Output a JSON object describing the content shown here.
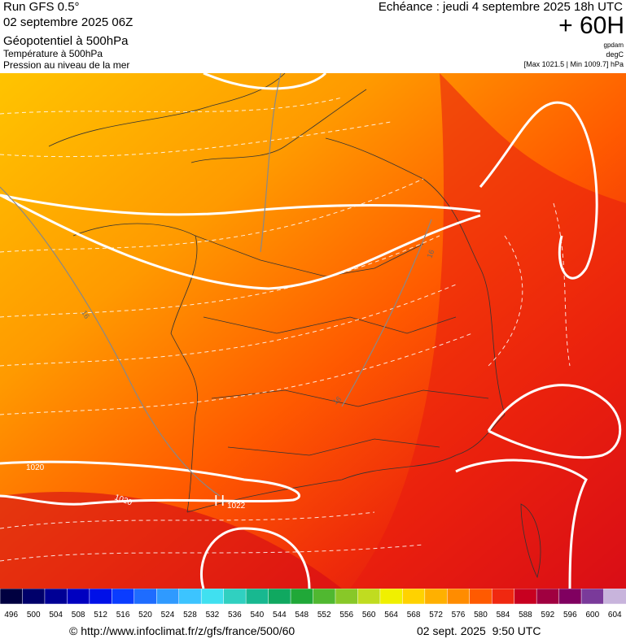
{
  "header": {
    "left": [
      "Run GFS 0.5°",
      "02 septembre 2025 06Z",
      "Géopotentiel à 500hPa",
      "Température à 500hPa",
      "Pression au niveau de la mer"
    ],
    "right": {
      "forecast": "Echéance : jeudi 4 septembre 2025 18h UTC",
      "lead": "+ 60H",
      "units": [
        "gpdam",
        "degC"
      ],
      "range": "[Max 1021.5 | Min 1009.7] hPa"
    }
  },
  "map_labels": {
    "isobar_1": "1020",
    "isobar_2": "1020",
    "high": "H",
    "high_value": "1022",
    "isotherm_1": "16",
    "isotherm_2": "16",
    "isotherm_3": "16"
  },
  "colorbar": {
    "ticks": [
      496,
      500,
      504,
      508,
      512,
      516,
      520,
      524,
      528,
      532,
      536,
      540,
      544,
      548,
      552,
      556,
      560,
      564,
      568,
      572,
      576,
      580,
      584,
      588,
      592,
      596,
      600,
      604
    ],
    "colors": [
      "#000040",
      "#00006a",
      "#000095",
      "#0000c0",
      "#0010e8",
      "#0a3cff",
      "#1e6cff",
      "#2f9aff",
      "#3cc4ff",
      "#40e0f0",
      "#30d0c0",
      "#18b890",
      "#10a860",
      "#20a838",
      "#50b830",
      "#88c828",
      "#c0dc20",
      "#f0f000",
      "#ffd200",
      "#ffb000",
      "#ff8c00",
      "#ff5a00",
      "#f02810",
      "#c80020",
      "#a00040",
      "#800060",
      "#7a3a9a",
      "#c8b4dc"
    ]
  },
  "footer": {
    "source": "© http://www.infoclimat.fr/z/gfs/france/500/60",
    "timestamp": "02 sept. 2025  9:50 UTC"
  }
}
